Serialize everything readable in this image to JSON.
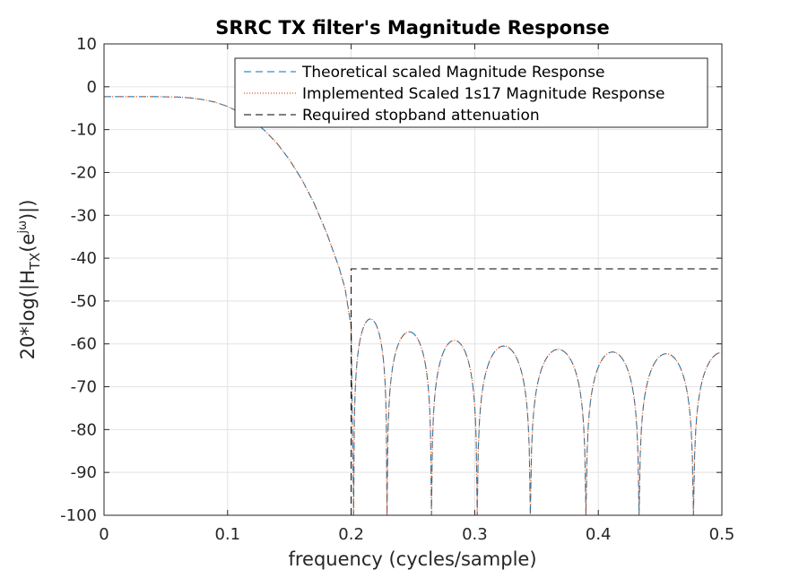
{
  "chart_data": {
    "type": "line",
    "title": "SRRC TX filter's Magnitude Response",
    "xlabel": "frequency (cycles/sample)",
    "ylabel": "20*log(|H_TX(e^jω)|)",
    "ylabel_parts": {
      "prefix": "20*log(|H",
      "sub": "TX",
      "mid": "(e",
      "sup": "jω",
      "suffix": ")|)"
    },
    "xlim": [
      0,
      0.5
    ],
    "ylim": [
      -100,
      10
    ],
    "xticks": [
      0,
      0.1,
      0.2,
      0.3,
      0.4,
      0.5
    ],
    "xtick_labels": [
      "0",
      "0.1",
      "0.2",
      "0.3",
      "0.4",
      "0.5"
    ],
    "yticks": [
      10,
      0,
      -10,
      -20,
      -30,
      -40,
      -50,
      -60,
      -70,
      -80,
      -90,
      -100
    ],
    "ytick_labels": [
      "10",
      "0",
      "-10",
      "-20",
      "-30",
      "-40",
      "-50",
      "-60",
      "-70",
      "-80",
      "-90",
      "-100"
    ],
    "grid": true,
    "legend_position": "top-right",
    "legend": [
      "Theoretical scaled Magnitude Response",
      "Implemented Scaled 1s17 Magnitude Response",
      "Required stopband attenuation"
    ],
    "series": [
      {
        "name": "Theoretical scaled Magnitude Response",
        "color": "#0072BD",
        "style": "dashed",
        "x": [
          0,
          0.02,
          0.04,
          0.06,
          0.07,
          0.08,
          0.09,
          0.1,
          0.11,
          0.12,
          0.13,
          0.14,
          0.15,
          0.16,
          0.17,
          0.18,
          0.19,
          0.195,
          0.2,
          0.202
        ],
        "y": [
          -2.3,
          -2.3,
          -2.3,
          -2.4,
          -2.6,
          -3.0,
          -3.6,
          -4.6,
          -6.0,
          -7.8,
          -10.2,
          -13.2,
          -17.0,
          -21.6,
          -27.2,
          -34.0,
          -42.0,
          -47.0,
          -56.0,
          -100
        ]
      },
      {
        "name": "Implemented Scaled 1s17 Magnitude Response",
        "color": "#D95319",
        "style": "dotted",
        "x": [
          0,
          0.02,
          0.04,
          0.06,
          0.07,
          0.08,
          0.09,
          0.1,
          0.11,
          0.12,
          0.13,
          0.14,
          0.15,
          0.16,
          0.17,
          0.18,
          0.19,
          0.195,
          0.2,
          0.202
        ],
        "y": [
          -2.3,
          -2.3,
          -2.3,
          -2.4,
          -2.6,
          -3.0,
          -3.6,
          -4.6,
          -6.0,
          -7.8,
          -10.2,
          -13.2,
          -17.0,
          -21.6,
          -27.2,
          -34.0,
          -42.0,
          -47.0,
          -56.0,
          -100
        ]
      },
      {
        "name": "Required stopband attenuation",
        "color": "#000000",
        "style": "dashed",
        "x": [
          0.2,
          0.2,
          0.5
        ],
        "y": [
          -100,
          -42.5,
          -42.5
        ]
      }
    ],
    "stopband_zeros": [
      0.202,
      0.229,
      0.265,
      0.302,
      0.345,
      0.39,
      0.433,
      0.477
    ],
    "stopband_peaks": [
      -54.2,
      -57.2,
      -59.2,
      -60.5,
      -61.3,
      -61.9,
      -62.3
    ],
    "stopband_tail_end": {
      "x": 0.5,
      "y": -62.0
    }
  }
}
